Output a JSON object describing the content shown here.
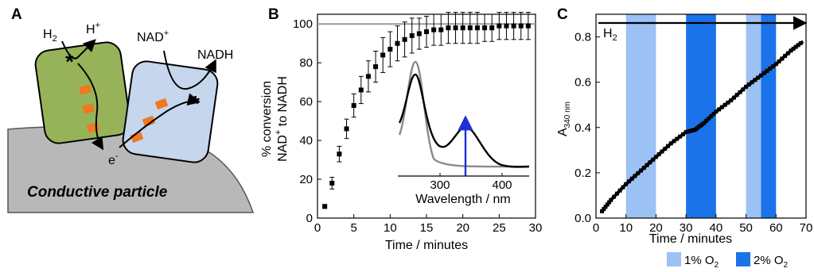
{
  "panelA": {
    "label": "A",
    "h2": "H",
    "h2_sub": "2",
    "hplus": "H",
    "hplus_sup": "+",
    "nadplus": "NAD",
    "nadplus_sup": "+",
    "nadh": "NADH",
    "electron": "e",
    "electron_sup": "-",
    "particle": "Conductive particle",
    "colors": {
      "green_enzyme": "#97b35a",
      "blue_enzyme": "#c5d6ed",
      "cluster": "#f07820",
      "particle": "#b8b8b8"
    }
  },
  "panelB": {
    "label": "B",
    "ylabel_line1": "% conversion",
    "ylabel_line2_a": "NAD",
    "ylabel_line2_sup": "+",
    "ylabel_line2_b": " to NADH",
    "xlabel": "Time / minutes",
    "inset_xlabel": "Wavelength / nm",
    "inset_ticks": [
      "300",
      "400"
    ],
    "chart_data": {
      "type": "scatter",
      "x": [
        1,
        2,
        3,
        4,
        5,
        6,
        7,
        8,
        9,
        10,
        11,
        12,
        13,
        14,
        15,
        16,
        17,
        18,
        19,
        20,
        21,
        22,
        23,
        24,
        25,
        26,
        27,
        28,
        29
      ],
      "y": [
        6,
        18,
        33,
        46,
        58,
        66,
        73,
        78,
        84,
        87,
        90,
        92,
        94,
        95,
        96,
        97,
        97,
        98,
        98,
        98,
        98,
        98,
        98,
        98,
        99,
        99,
        99,
        99,
        99
      ],
      "err": [
        1,
        3,
        4,
        5,
        6,
        7,
        8,
        8,
        9,
        9,
        9,
        9,
        9,
        8,
        8,
        8,
        8,
        8,
        8,
        8,
        8,
        8,
        7,
        7,
        7,
        7,
        7,
        7,
        7
      ],
      "reference_line": 100,
      "xlim": [
        0,
        30
      ],
      "ylim": [
        0,
        105
      ],
      "xticks": [
        0,
        5,
        10,
        15,
        20,
        25,
        30
      ],
      "yticks": [
        0,
        20,
        40,
        60,
        80,
        100
      ]
    }
  },
  "panelC": {
    "label": "C",
    "ylabel_main": "A",
    "ylabel_sub": "340 nm",
    "xlabel": "Time / minutes",
    "h2": "H",
    "h2_sub": "2",
    "legend": [
      {
        "label": "1% O",
        "sub": "2",
        "color": "#9cc1f5"
      },
      {
        "label": "2% O",
        "sub": "2",
        "color": "#1a73e8"
      }
    ],
    "chart_data": {
      "type": "line",
      "x": [
        2,
        5,
        10,
        15,
        20,
        25,
        30,
        33,
        36,
        40,
        45,
        50,
        55,
        60,
        65,
        69
      ],
      "y": [
        0.03,
        0.08,
        0.15,
        0.21,
        0.27,
        0.33,
        0.38,
        0.39,
        0.42,
        0.47,
        0.52,
        0.58,
        0.63,
        0.68,
        0.74,
        0.78
      ],
      "shaded_regions": [
        {
          "from": 10,
          "to": 20,
          "level": "1% O2"
        },
        {
          "from": 30,
          "to": 40,
          "level": "2% O2"
        },
        {
          "from": 50,
          "to": 55,
          "level": "1% O2"
        },
        {
          "from": 55,
          "to": 60,
          "level": "2% O2"
        }
      ],
      "xlim": [
        0,
        70
      ],
      "ylim": [
        0,
        0.9
      ],
      "xticks": [
        0,
        10,
        20,
        30,
        40,
        50,
        60,
        70
      ],
      "yticks": [
        "0.0",
        "0.2",
        "0.4",
        "0.6",
        "0.8"
      ]
    }
  }
}
